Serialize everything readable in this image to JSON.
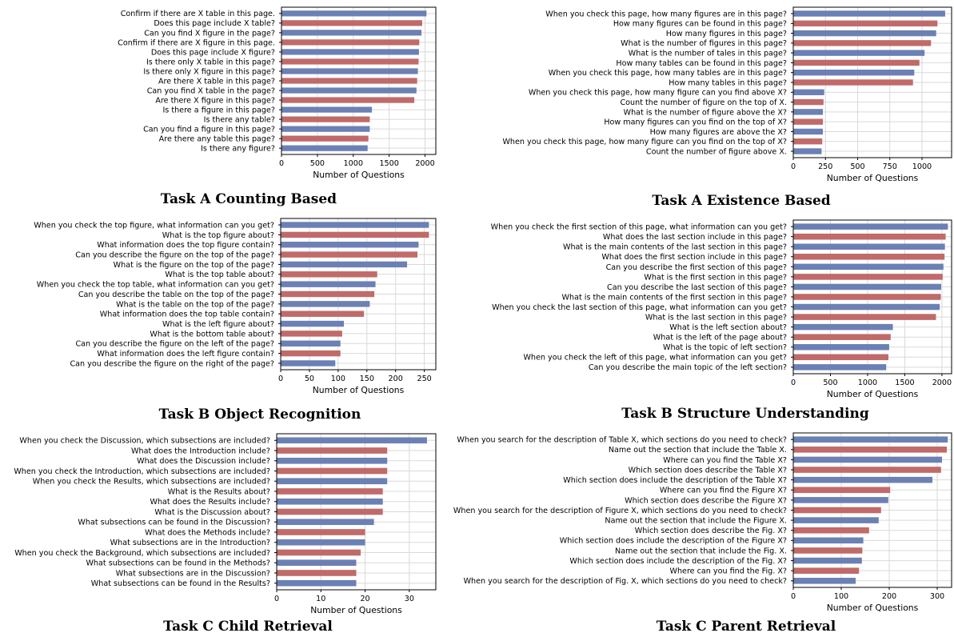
{
  "colors": {
    "blue": "#6b80b4",
    "red": "#c06a69"
  },
  "chart_data": [
    {
      "type": "bar",
      "orientation": "horizontal",
      "title": "Task A Counting Based",
      "xlabel": "Number of Questions",
      "xlim": [
        0,
        2150
      ],
      "ticks": [
        0,
        500,
        1000,
        1500,
        2000
      ],
      "categories": [
        "Confirm if there are X table in this page.",
        "Does this page include X table?",
        "Can you find X figure in the page?",
        "Confirm if there are X figure in this page.",
        "Does this page include X figure?",
        "Is there only X table in this page?",
        "Is there only X figure in this page?",
        "Are there X table in this page?",
        "Can you find X table in the page?",
        "Are there X figure in this page?",
        "Is there a figure in this page?",
        "Is there any table?",
        "Can you find a figure in this page?",
        "Are there any table this page?",
        "Is there any figure?"
      ],
      "values": [
        2020,
        1960,
        1950,
        1920,
        1915,
        1910,
        1900,
        1890,
        1880,
        1850,
        1260,
        1230,
        1230,
        1210,
        1200
      ]
    },
    {
      "type": "bar",
      "orientation": "horizontal",
      "title": "Task A Existence Based",
      "xlabel": "Number of Questions",
      "xlim": [
        0,
        1230
      ],
      "ticks": [
        0,
        250,
        500,
        750,
        1000
      ],
      "categories": [
        "When you check this page, how many figures are in this page?",
        "How many figures can be found in this page?",
        "How many figures in this page?",
        "What is the number of figures in this page?",
        "What is the number of tales in this page?",
        "How many tables can be found in this page?",
        "When you check this page, how many tables are in this page?",
        "How many tables in this page?",
        "When you check this page, how many figure can you find above X?",
        "Count the number of figure on the top of X.",
        "What is the number of figure above the X?",
        "How many figures can you find on the top of X?",
        "How many figures are above the X?",
        "When you check this page, how many figure can you find on the top of X?",
        "Count the number of figure above X."
      ],
      "values": [
        1180,
        1120,
        1110,
        1070,
        1020,
        980,
        940,
        930,
        240,
        235,
        230,
        230,
        230,
        225,
        220
      ]
    },
    {
      "type": "bar",
      "orientation": "horizontal",
      "title": "Task B Object Recognition",
      "xlabel": "Number of Questions",
      "xlim": [
        0,
        270
      ],
      "ticks": [
        0,
        50,
        100,
        150,
        200,
        250
      ],
      "categories": [
        "When you check the top figure, what information can you get?",
        "What is the top figure about?",
        "What information does the top figure contain?",
        "Can you describe the figure on the top of the page?",
        "What is the figure on the top of the page?",
        "What is the top table about?",
        "When you check the top table, what information can you get?",
        "Can you describe the table on the top of the page?",
        "What is the table on the top of the page?",
        "What information does the top table contain?",
        "What is the left figure about?",
        "What is the bottom table about?",
        "Can you describe the figure on the left of the page?",
        "What information does the left figure contain?",
        "Can you describe the figure on the right of the page?"
      ],
      "values": [
        258,
        258,
        240,
        238,
        220,
        168,
        165,
        163,
        155,
        145,
        110,
        107,
        104,
        104,
        95
      ]
    },
    {
      "type": "bar",
      "orientation": "horizontal",
      "title": "Task B Structure Understanding",
      "xlabel": "Number of Questions",
      "xlim": [
        0,
        2130
      ],
      "ticks": [
        0,
        500,
        1000,
        1500,
        2000
      ],
      "categories": [
        "When you check the first section of this page, what information can you get?",
        "What does the last section include in this page?",
        "What is the main contents of the last section in this page?",
        "What does the first section include in this page?",
        "Can you describe the first section of this page?",
        "What is the first section in this page?",
        "Can you describe the last section of this page?",
        "What is the main contents of the first section in this page?",
        "When you check the last section of this page, what information can you get?",
        "What is the last section in this page?",
        "What is the left section about?",
        "What is the left of the page about?",
        "What is the topic of left section?",
        "When you check the left of this page, what information can you get?",
        "Can you describe the main topic of the left section?"
      ],
      "values": [
        2080,
        2050,
        2040,
        2035,
        2020,
        2010,
        1990,
        1985,
        1970,
        1920,
        1340,
        1310,
        1290,
        1280,
        1250
      ]
    },
    {
      "type": "bar",
      "orientation": "horizontal",
      "title": "Task C Child Retrieval",
      "xlabel": "Number of Questions",
      "xlim": [
        0,
        36
      ],
      "ticks": [
        0,
        10,
        20,
        30
      ],
      "categories": [
        "When you check the Discussion, which subsections are included?",
        "What does the Introduction include?",
        "What does the Discussion include?",
        "When you check the Introduction, which subsections are included?",
        "When you check the Results, which subsections are included?",
        "What is the Results about?",
        "What does the Results include?",
        "What is the Discussion about?",
        "What subsections can be found in the Discussion?",
        "What does the Methods include?",
        "What subsections are in the Introduction?",
        "When you check the Background, which subsections are included?",
        "What subsections can be found in the Methods?",
        "What subsections are in the Discussion?",
        "What subsections can be found in the Results?"
      ],
      "values": [
        34,
        25,
        25,
        25,
        25,
        24,
        24,
        24,
        22,
        20,
        20,
        19,
        18,
        18,
        18
      ]
    },
    {
      "type": "bar",
      "orientation": "horizontal",
      "title": "Task C Parent Retrieval",
      "xlabel": "Number of Questions",
      "xlim": [
        0,
        330
      ],
      "ticks": [
        0,
        100,
        200,
        300
      ],
      "categories": [
        "When you search for the description of Table X, which sections do you need to check?",
        "Name out the section that include the Table X.",
        "Where can you find the Table X?",
        "Which section does describe the Table X?",
        "Which section does include the description of the Table X?",
        "Where can you find the Figure X?",
        "Which section does describe the Figure X?",
        "When you search for the description of Figure X, which sections do you need to check?",
        "Name out the section that include the Figure X.",
        "Which section does describe the Fig. X?",
        "Which section does include the description of the Figure X?",
        "Name out the section that include the Fig. X.",
        "Which section does include the description of the Fig. X?",
        "Where can you find the Fig. X?",
        "When you search for the description of Fig. X, which sections do you need to check?"
      ],
      "values": [
        322,
        320,
        310,
        308,
        290,
        202,
        198,
        183,
        178,
        158,
        146,
        144,
        143,
        137,
        130
      ]
    }
  ]
}
